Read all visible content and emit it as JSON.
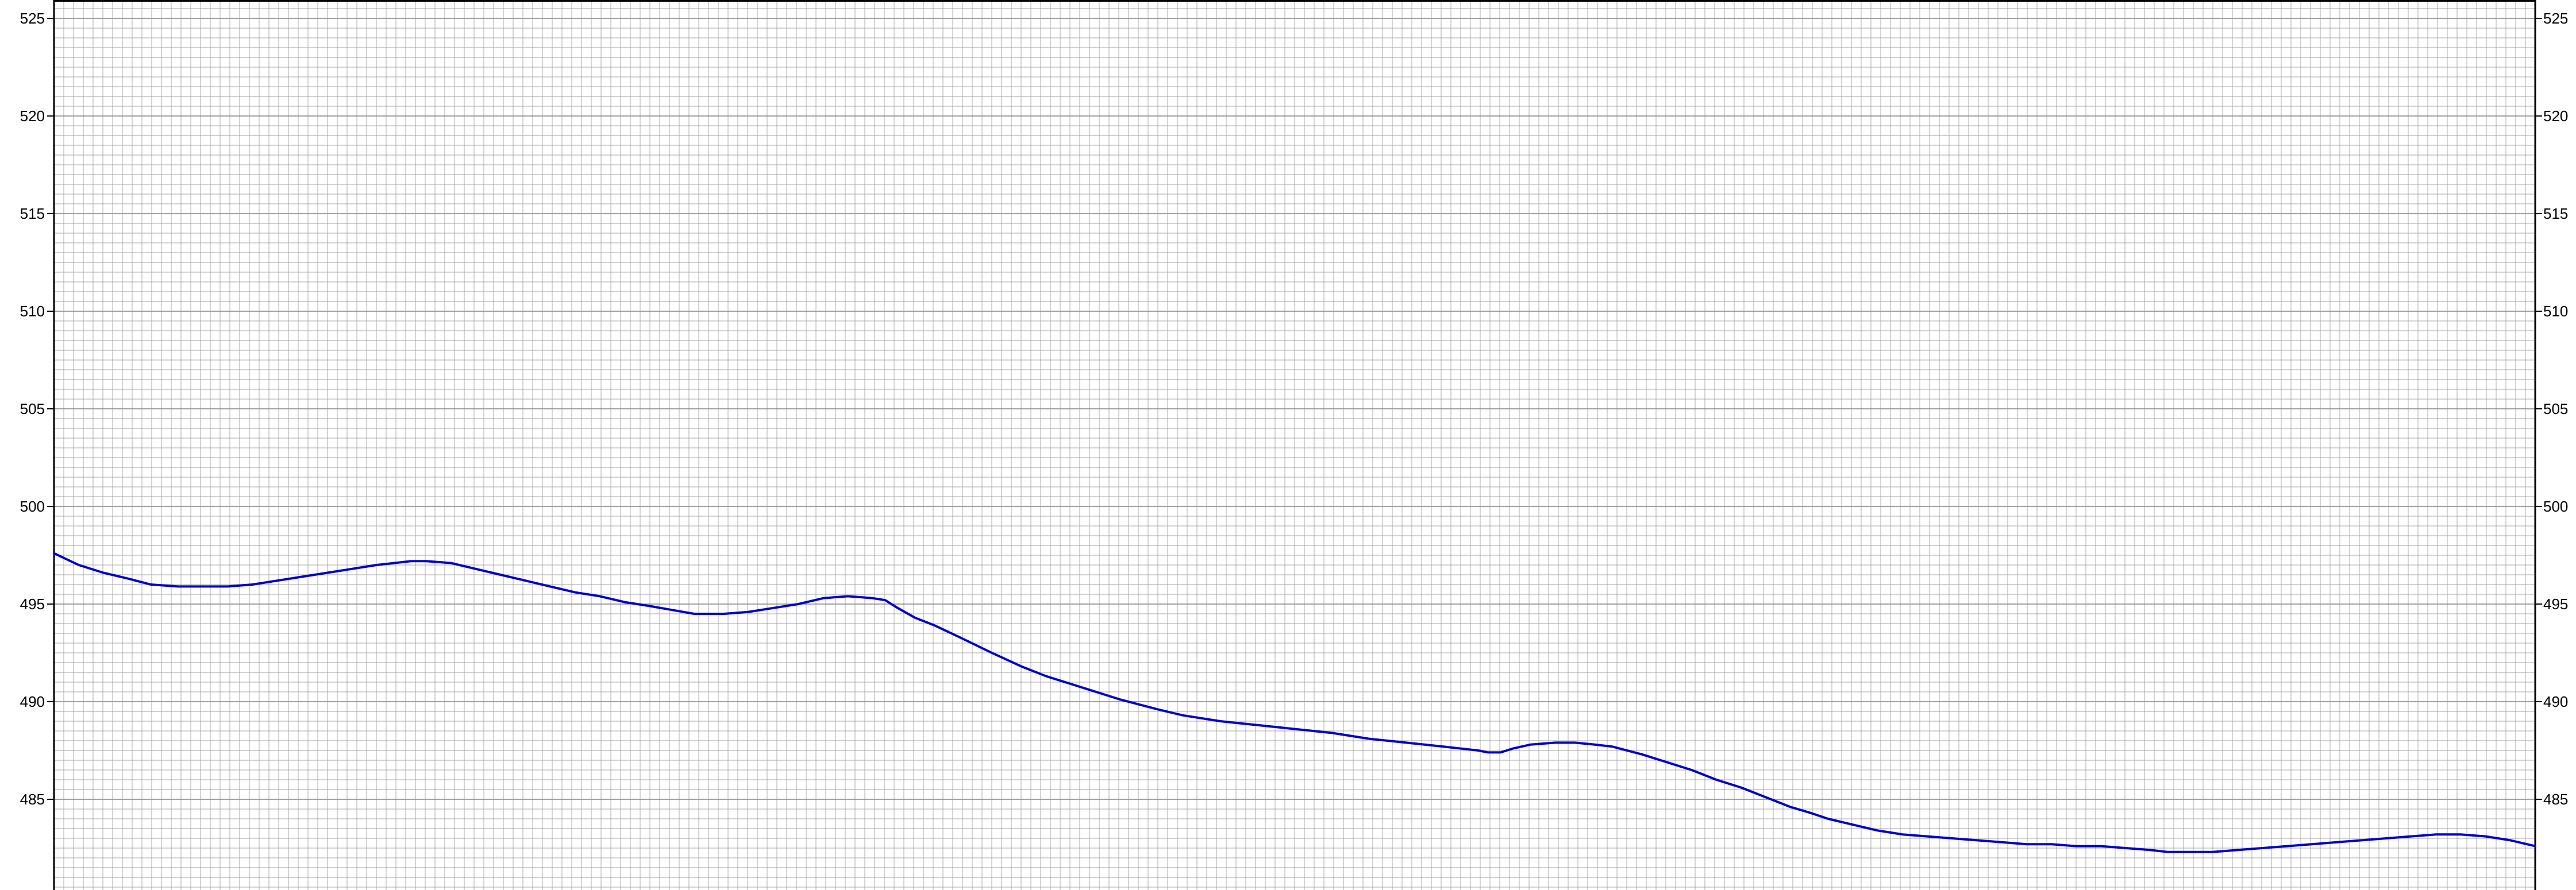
{
  "colors": {
    "background": "#ffffff",
    "grid": "#a0a0a0",
    "axis": "#000000",
    "line": "#0000cc"
  },
  "chart_data": {
    "type": "line",
    "title": "",
    "xlabel": "",
    "ylabel": "",
    "grid": true,
    "ylim": [
      482.3,
      525.8
    ],
    "xlim": [
      0,
      100
    ],
    "y_ticks": [
      485,
      490,
      495,
      500,
      505,
      510,
      515,
      520,
      525
    ],
    "y_tick_labels_left": [
      "485",
      "490",
      "495",
      "500",
      "505",
      "510",
      "515",
      "520",
      "525"
    ],
    "y_tick_labels_right": [
      "485",
      "490",
      "495",
      "500",
      "505",
      "510",
      "515",
      "520",
      "525"
    ],
    "series": [
      {
        "color": "#0000cc",
        "x": [
          0,
          1,
          2,
          3,
          3.9,
          5,
          6,
          7,
          8,
          9,
          10,
          11,
          12,
          13,
          13.7,
          14.4,
          15,
          16,
          17,
          18,
          19,
          20,
          21,
          22,
          23,
          24,
          24.9,
          25.8,
          27,
          28,
          29,
          30,
          31,
          32,
          33,
          33.5,
          34,
          34.7,
          35.5,
          36.5,
          37.8,
          39,
          40,
          41,
          42,
          43,
          44.5,
          45.5,
          47,
          48.5,
          50,
          51.5,
          53,
          54.5,
          56,
          57.4,
          57.8,
          58.3,
          58.8,
          59.5,
          60.5,
          61.3,
          62.1,
          62.8,
          64,
          65,
          66,
          67,
          68,
          69,
          70,
          70.8,
          71.5,
          72.5,
          73.5,
          74.5,
          75.5,
          76.5,
          77.5,
          78.5,
          79.5,
          80.5,
          81.5,
          82.5,
          83.5,
          84.5,
          85.2,
          86,
          87,
          88,
          89,
          90,
          91,
          92,
          93,
          94,
          95,
          96,
          97,
          98,
          99,
          100
        ],
        "y": [
          497.6,
          497.0,
          496.6,
          496.3,
          496.0,
          495.9,
          495.9,
          495.9,
          496.0,
          496.2,
          496.4,
          496.6,
          496.8,
          497.0,
          497.1,
          497.2,
          497.2,
          497.1,
          496.8,
          496.5,
          496.2,
          495.9,
          495.6,
          495.4,
          495.1,
          494.9,
          494.7,
          494.5,
          494.5,
          494.6,
          494.8,
          495.0,
          495.3,
          495.4,
          495.3,
          495.2,
          494.8,
          494.3,
          493.9,
          493.3,
          492.5,
          491.8,
          491.3,
          490.9,
          490.5,
          490.1,
          489.6,
          489.3,
          489.0,
          488.8,
          488.6,
          488.4,
          488.1,
          487.9,
          487.7,
          487.5,
          487.4,
          487.4,
          487.6,
          487.8,
          487.9,
          487.9,
          487.8,
          487.7,
          487.3,
          486.9,
          486.5,
          486.0,
          485.6,
          485.1,
          484.6,
          484.3,
          484.0,
          483.7,
          483.4,
          483.2,
          483.1,
          483.0,
          482.9,
          482.8,
          482.7,
          482.7,
          482.6,
          482.6,
          482.5,
          482.4,
          482.3,
          482.3,
          482.3,
          482.4,
          482.5,
          482.6,
          482.7,
          482.8,
          482.9,
          483.0,
          483.1,
          483.2,
          483.2,
          483.1,
          482.9,
          482.6
        ]
      }
    ]
  }
}
